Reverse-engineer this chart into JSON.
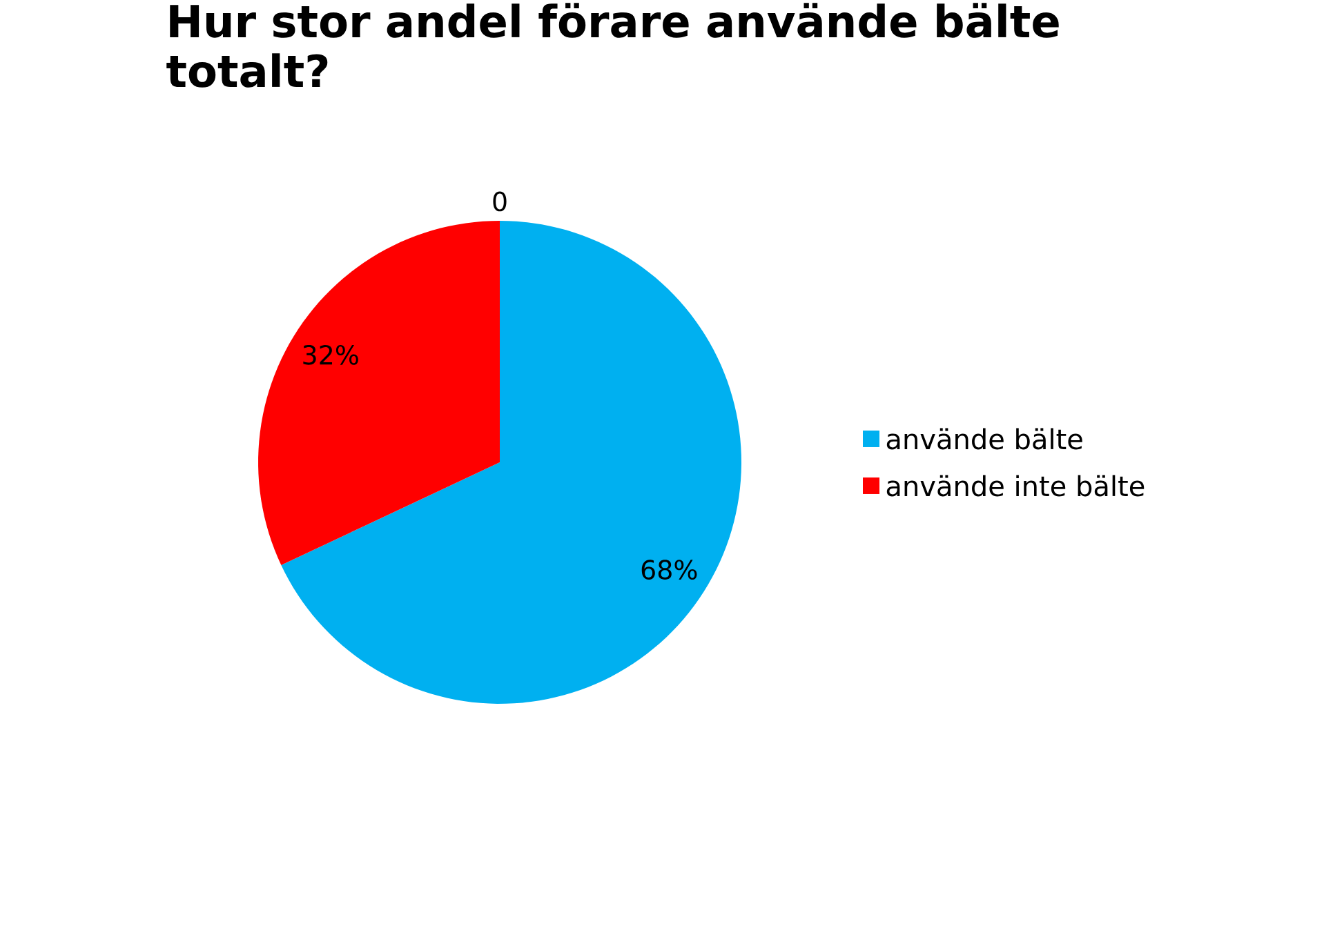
{
  "chart_data": {
    "type": "pie",
    "title": "Hur stor andel förare använde bälte totalt?",
    "categories": [
      "använde bälte",
      "använde inte bälte"
    ],
    "values": [
      68,
      32
    ],
    "colors": [
      "#00b0f0",
      "#ff0000"
    ],
    "value_labels": [
      "68%",
      "32%"
    ],
    "legend": "right",
    "annotations": [
      "0"
    ]
  }
}
